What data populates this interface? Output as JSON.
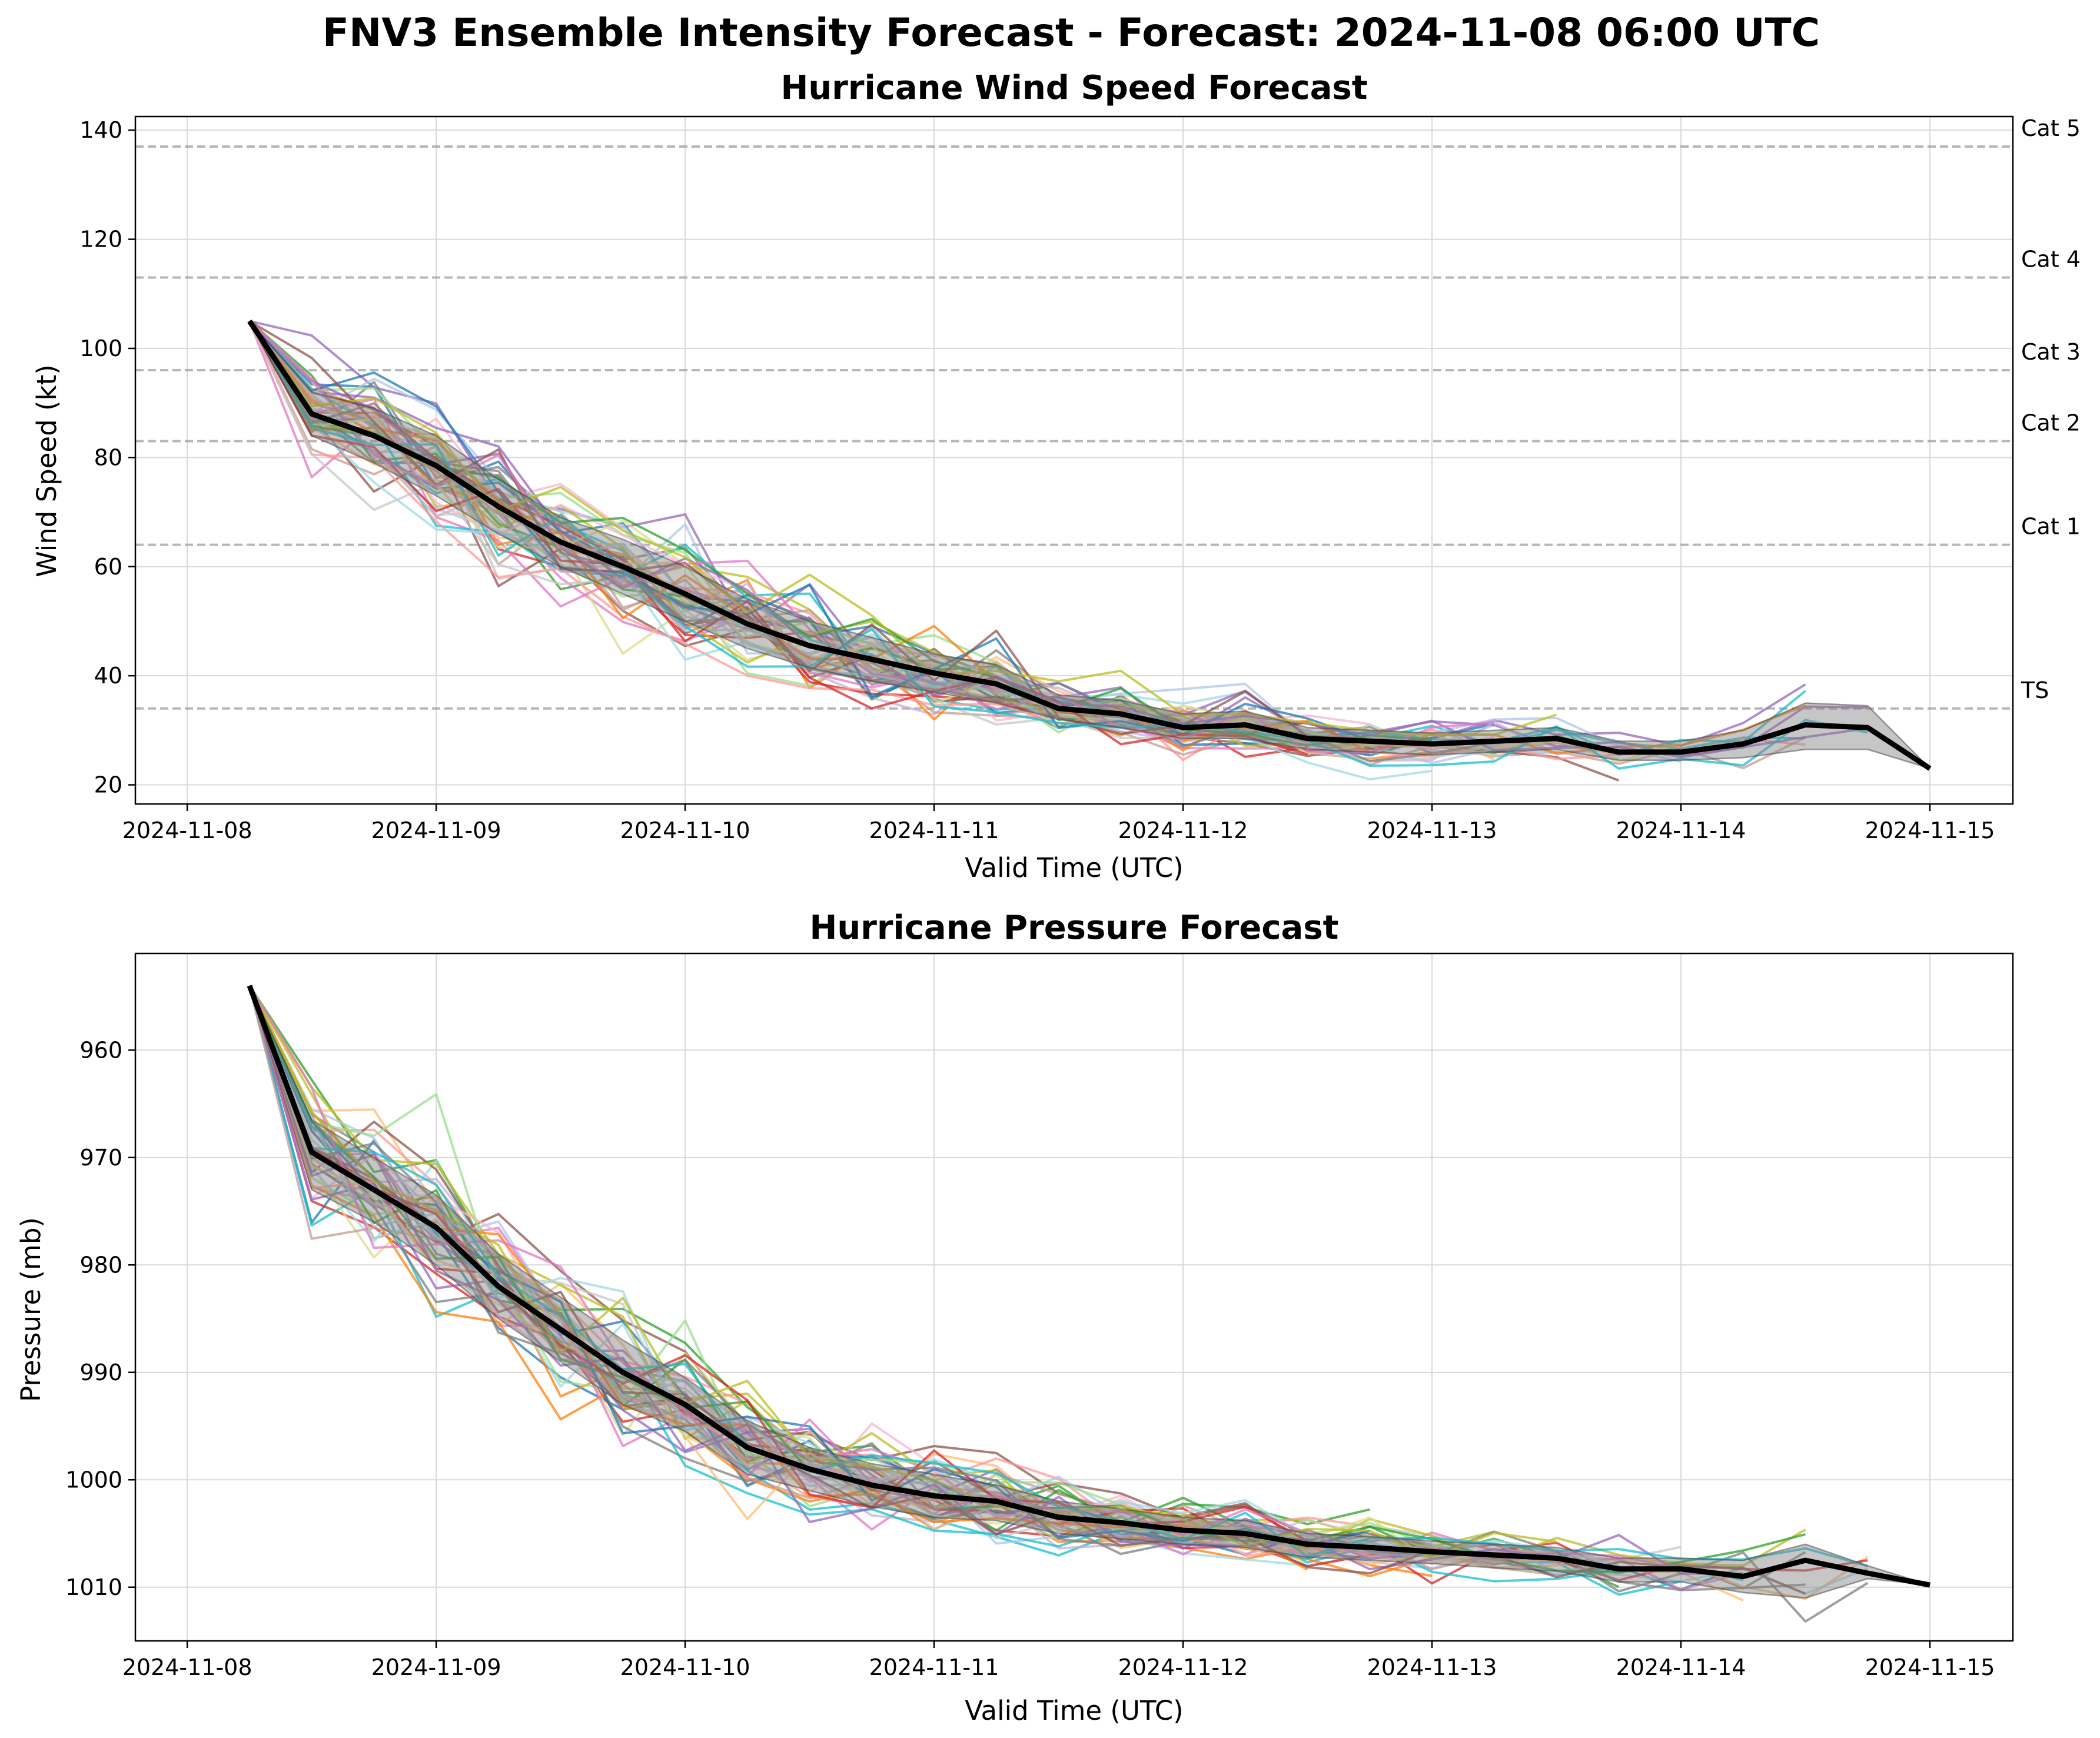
{
  "suptitle": "FNV3 Ensemble Intensity Forecast - Forecast: 2024-11-08 06:00 UTC",
  "chart_data": [
    {
      "type": "line",
      "title": "Hurricane Wind Speed Forecast",
      "xlabel": "Valid Time (UTC)",
      "ylabel": "Wind Speed (kt)",
      "x_ticks": [
        "2024-11-08",
        "2024-11-09",
        "2024-11-10",
        "2024-11-11",
        "2024-11-12",
        "2024-11-13",
        "2024-11-14",
        "2024-11-15"
      ],
      "y_ticks": [
        20,
        40,
        60,
        80,
        100,
        120,
        140
      ],
      "xlim": [
        "2024-11-07 19:00",
        "2024-11-15 08:00"
      ],
      "ylim": [
        16.5,
        142.5
      ],
      "grid": true,
      "category_lines": [
        {
          "label": "TS",
          "value": 34
        },
        {
          "label": "Cat 1",
          "value": 64
        },
        {
          "label": "Cat 2",
          "value": 83
        },
        {
          "label": "Cat 3",
          "value": 96
        },
        {
          "label": "Cat 4",
          "value": 113
        },
        {
          "label": "Cat 5",
          "value": 137
        }
      ],
      "x": [
        "2024-11-08 06:00",
        "2024-11-08 12:00",
        "2024-11-08 18:00",
        "2024-11-09 00:00",
        "2024-11-09 06:00",
        "2024-11-09 12:00",
        "2024-11-09 18:00",
        "2024-11-10 00:00",
        "2024-11-10 06:00",
        "2024-11-10 12:00",
        "2024-11-10 18:00",
        "2024-11-11 00:00",
        "2024-11-11 06:00",
        "2024-11-11 12:00",
        "2024-11-11 18:00",
        "2024-11-12 00:00",
        "2024-11-12 06:00",
        "2024-11-12 12:00",
        "2024-11-12 18:00",
        "2024-11-13 00:00",
        "2024-11-13 06:00",
        "2024-11-13 12:00",
        "2024-11-13 18:00",
        "2024-11-14 00:00",
        "2024-11-14 06:00",
        "2024-11-14 12:00",
        "2024-11-14 18:00",
        "2024-11-15 00:00"
      ],
      "ensemble_mean": [
        105,
        88,
        84,
        78.5,
        71,
        64.5,
        60,
        55,
        49.5,
        45.5,
        43,
        40.5,
        38.5,
        34,
        33,
        30.5,
        31,
        28.5,
        28,
        27.5,
        28,
        28.5,
        26,
        26,
        27.5,
        31,
        30.5,
        23
      ],
      "spread_low": [
        105,
        84,
        79,
        73,
        66,
        60,
        55,
        50,
        45,
        41.5,
        39,
        37,
        35,
        32,
        30.5,
        28.5,
        28.5,
        26.5,
        26,
        25.5,
        26,
        26.5,
        24.5,
        24.5,
        25,
        26.5,
        26.5,
        23
      ],
      "spread_high": [
        105,
        92,
        89,
        84,
        76,
        69,
        65,
        60,
        54,
        50,
        47,
        44,
        42,
        36.5,
        35.5,
        33,
        33.5,
        30.5,
        30,
        29.5,
        30,
        30.5,
        28,
        28,
        30,
        35,
        34.5,
        23
      ],
      "members_visible": 50,
      "member_colors": [
        "#1f77b4",
        "#ff7f0e",
        "#2ca02c",
        "#d62728",
        "#9467bd",
        "#8c564b",
        "#e377c2",
        "#7f7f7f",
        "#bcbd22",
        "#17becf",
        "#aec7e8",
        "#ffbb78",
        "#98df8a",
        "#ff9896",
        "#c5b0d5",
        "#c49c94",
        "#f7b6d2",
        "#c7c7c7",
        "#dbdb8d",
        "#9edae5"
      ]
    },
    {
      "type": "line",
      "title": "Hurricane Pressure Forecast",
      "xlabel": "Valid Time (UTC)",
      "ylabel": "Pressure (mb)",
      "x_ticks": [
        "2024-11-08",
        "2024-11-09",
        "2024-11-10",
        "2024-11-11",
        "2024-11-12",
        "2024-11-13",
        "2024-11-14",
        "2024-11-15"
      ],
      "y_ticks": [
        960,
        970,
        980,
        990,
        1000,
        1010
      ],
      "xlim": [
        "2024-11-07 19:00",
        "2024-11-15 08:00"
      ],
      "ylim": [
        1015,
        951
      ],
      "y_inverted": true,
      "grid": true,
      "x": [
        "2024-11-08 06:00",
        "2024-11-08 12:00",
        "2024-11-08 18:00",
        "2024-11-09 00:00",
        "2024-11-09 06:00",
        "2024-11-09 12:00",
        "2024-11-09 18:00",
        "2024-11-10 00:00",
        "2024-11-10 06:00",
        "2024-11-10 12:00",
        "2024-11-10 18:00",
        "2024-11-11 00:00",
        "2024-11-11 06:00",
        "2024-11-11 12:00",
        "2024-11-11 18:00",
        "2024-11-12 00:00",
        "2024-11-12 06:00",
        "2024-11-12 12:00",
        "2024-11-12 18:00",
        "2024-11-13 00:00",
        "2024-11-13 06:00",
        "2024-11-13 12:00",
        "2024-11-13 18:00",
        "2024-11-14 00:00",
        "2024-11-14 06:00",
        "2024-11-14 12:00",
        "2024-11-14 18:00",
        "2024-11-15 00:00"
      ],
      "ensemble_mean": [
        954,
        969.5,
        973,
        976.5,
        982,
        986,
        990,
        993,
        997,
        999,
        1000.5,
        1001.5,
        1002,
        1003.5,
        1004,
        1004.7,
        1005,
        1006,
        1006.3,
        1006.7,
        1007,
        1007.3,
        1008.3,
        1008.3,
        1009,
        1007.5,
        1008.7,
        1009.8
      ],
      "spread_low": [
        954,
        966.5,
        970,
        973.5,
        979,
        983,
        987,
        990.5,
        994.5,
        997,
        998.5,
        999.5,
        1000.5,
        1002,
        1002.7,
        1003.5,
        1003.8,
        1005,
        1005.3,
        1005.7,
        1006,
        1006.3,
        1007.3,
        1007.3,
        1007.5,
        1006,
        1008,
        1009.8
      ],
      "spread_high": [
        954,
        973,
        976,
        980,
        985,
        989,
        993,
        995.5,
        999.5,
        1001,
        1002.5,
        1003.5,
        1003.8,
        1005,
        1005.5,
        1006,
        1006.3,
        1007.2,
        1007.5,
        1007.8,
        1008.2,
        1008.5,
        1009.5,
        1009.5,
        1010.5,
        1011,
        1009.2,
        1009.8
      ],
      "members_visible": 50,
      "member_colors": [
        "#1f77b4",
        "#ff7f0e",
        "#2ca02c",
        "#d62728",
        "#9467bd",
        "#8c564b",
        "#e377c2",
        "#7f7f7f",
        "#bcbd22",
        "#17becf",
        "#aec7e8",
        "#ffbb78",
        "#98df8a",
        "#ff9896",
        "#c5b0d5",
        "#c49c94",
        "#f7b6d2",
        "#c7c7c7",
        "#dbdb8d",
        "#9edae5"
      ]
    }
  ]
}
